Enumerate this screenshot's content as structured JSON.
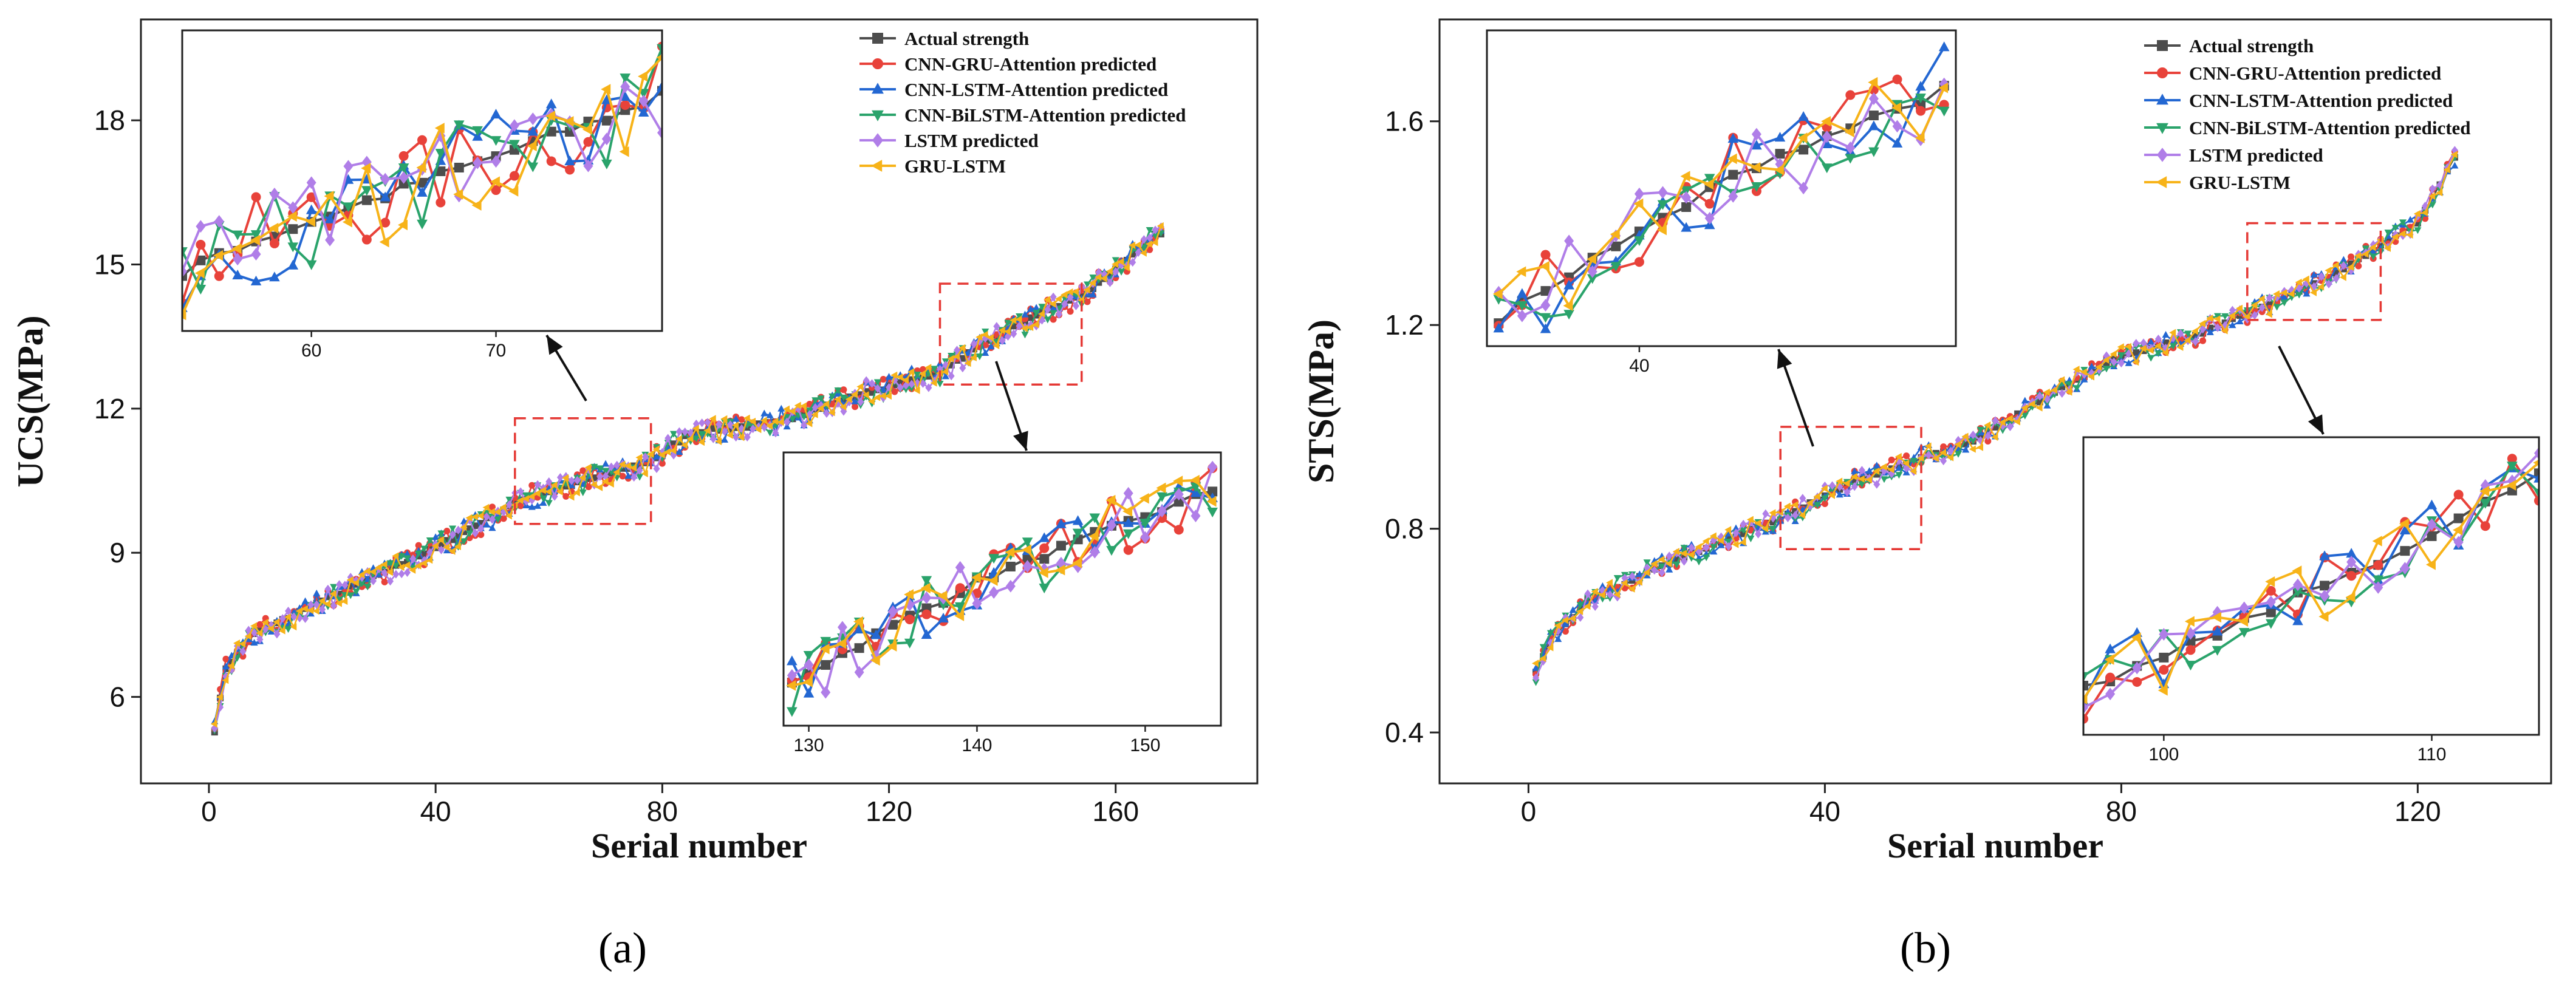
{
  "colors": {
    "actual": "#4d4d4d",
    "gru_att": "#e8423a",
    "lstm_att": "#2367d2",
    "bilstm_att": "#2aa36b",
    "lstm": "#b07ee8",
    "gru_lstm": "#f7b319",
    "zoom_box": "#e53935"
  },
  "legend": [
    "Actual strength",
    "CNN-GRU-Attention predicted",
    "CNN-LSTM-Attention predicted",
    "CNN-BiLSTM-Attention predicted",
    "LSTM predicted",
    "GRU-LSTM"
  ],
  "chart_data": [
    {
      "type": "line",
      "caption": "(a)",
      "xlabel": "Serial number",
      "ylabel": "UCS(MPa)",
      "xlim": [
        -12,
        185
      ],
      "ylim": [
        4.2,
        20.1
      ],
      "xticks": [
        "0",
        "40",
        "80",
        "120",
        "160"
      ],
      "yticks": [
        "6",
        "9",
        "12",
        "15",
        "18"
      ],
      "n_points": 168,
      "actual_anchors": {
        "x": [
          1,
          3,
          8,
          20,
          40,
          55,
          78,
          85,
          100,
          115,
          128,
          140,
          155,
          167
        ],
        "y": [
          5.3,
          6.6,
          7.3,
          8.0,
          9.1,
          10.1,
          10.9,
          11.5,
          11.7,
          12.3,
          12.7,
          13.6,
          14.4,
          15.6
        ]
      },
      "zoom_boxes": [
        {
          "x": [
            54,
            78
          ],
          "y": [
            9.6,
            11.8
          ],
          "inset_xticks": [
            "60",
            "70"
          ],
          "inset_xlim": [
            53,
            79
          ]
        },
        {
          "x": [
            129,
            154
          ],
          "y": [
            12.5,
            14.6
          ],
          "inset_xticks": [
            "130",
            "140",
            "150"
          ],
          "inset_xlim": [
            128.5,
            154.5
          ]
        }
      ]
    },
    {
      "type": "line",
      "caption": "(b)",
      "xlabel": "Serial number",
      "ylabel": "STS(MPa)",
      "xlim": [
        -12,
        138
      ],
      "ylim": [
        0.3,
        1.8
      ],
      "xticks": [
        "0",
        "40",
        "80",
        "120"
      ],
      "yticks": [
        "0.4",
        "0.8",
        "1.2",
        "1.6"
      ],
      "n_points": 125,
      "actual_anchors": {
        "x": [
          1,
          3,
          8,
          20,
          34,
          45,
          60,
          70,
          80,
          90,
          100,
          110,
          120,
          125
        ],
        "y": [
          0.52,
          0.58,
          0.66,
          0.74,
          0.82,
          0.9,
          0.97,
          1.06,
          1.14,
          1.18,
          1.24,
          1.31,
          1.4,
          1.53
        ]
      },
      "zoom_boxes": [
        {
          "x": [
            34,
            53
          ],
          "y": [
            0.76,
            1.0
          ],
          "inset_xticks": [
            "40"
          ],
          "inset_xlim": [
            33.5,
            53.5
          ]
        },
        {
          "x": [
            97,
            115
          ],
          "y": [
            1.21,
            1.4
          ],
          "inset_xticks": [
            "100",
            "110"
          ],
          "inset_xlim": [
            97,
            114
          ]
        }
      ]
    }
  ]
}
